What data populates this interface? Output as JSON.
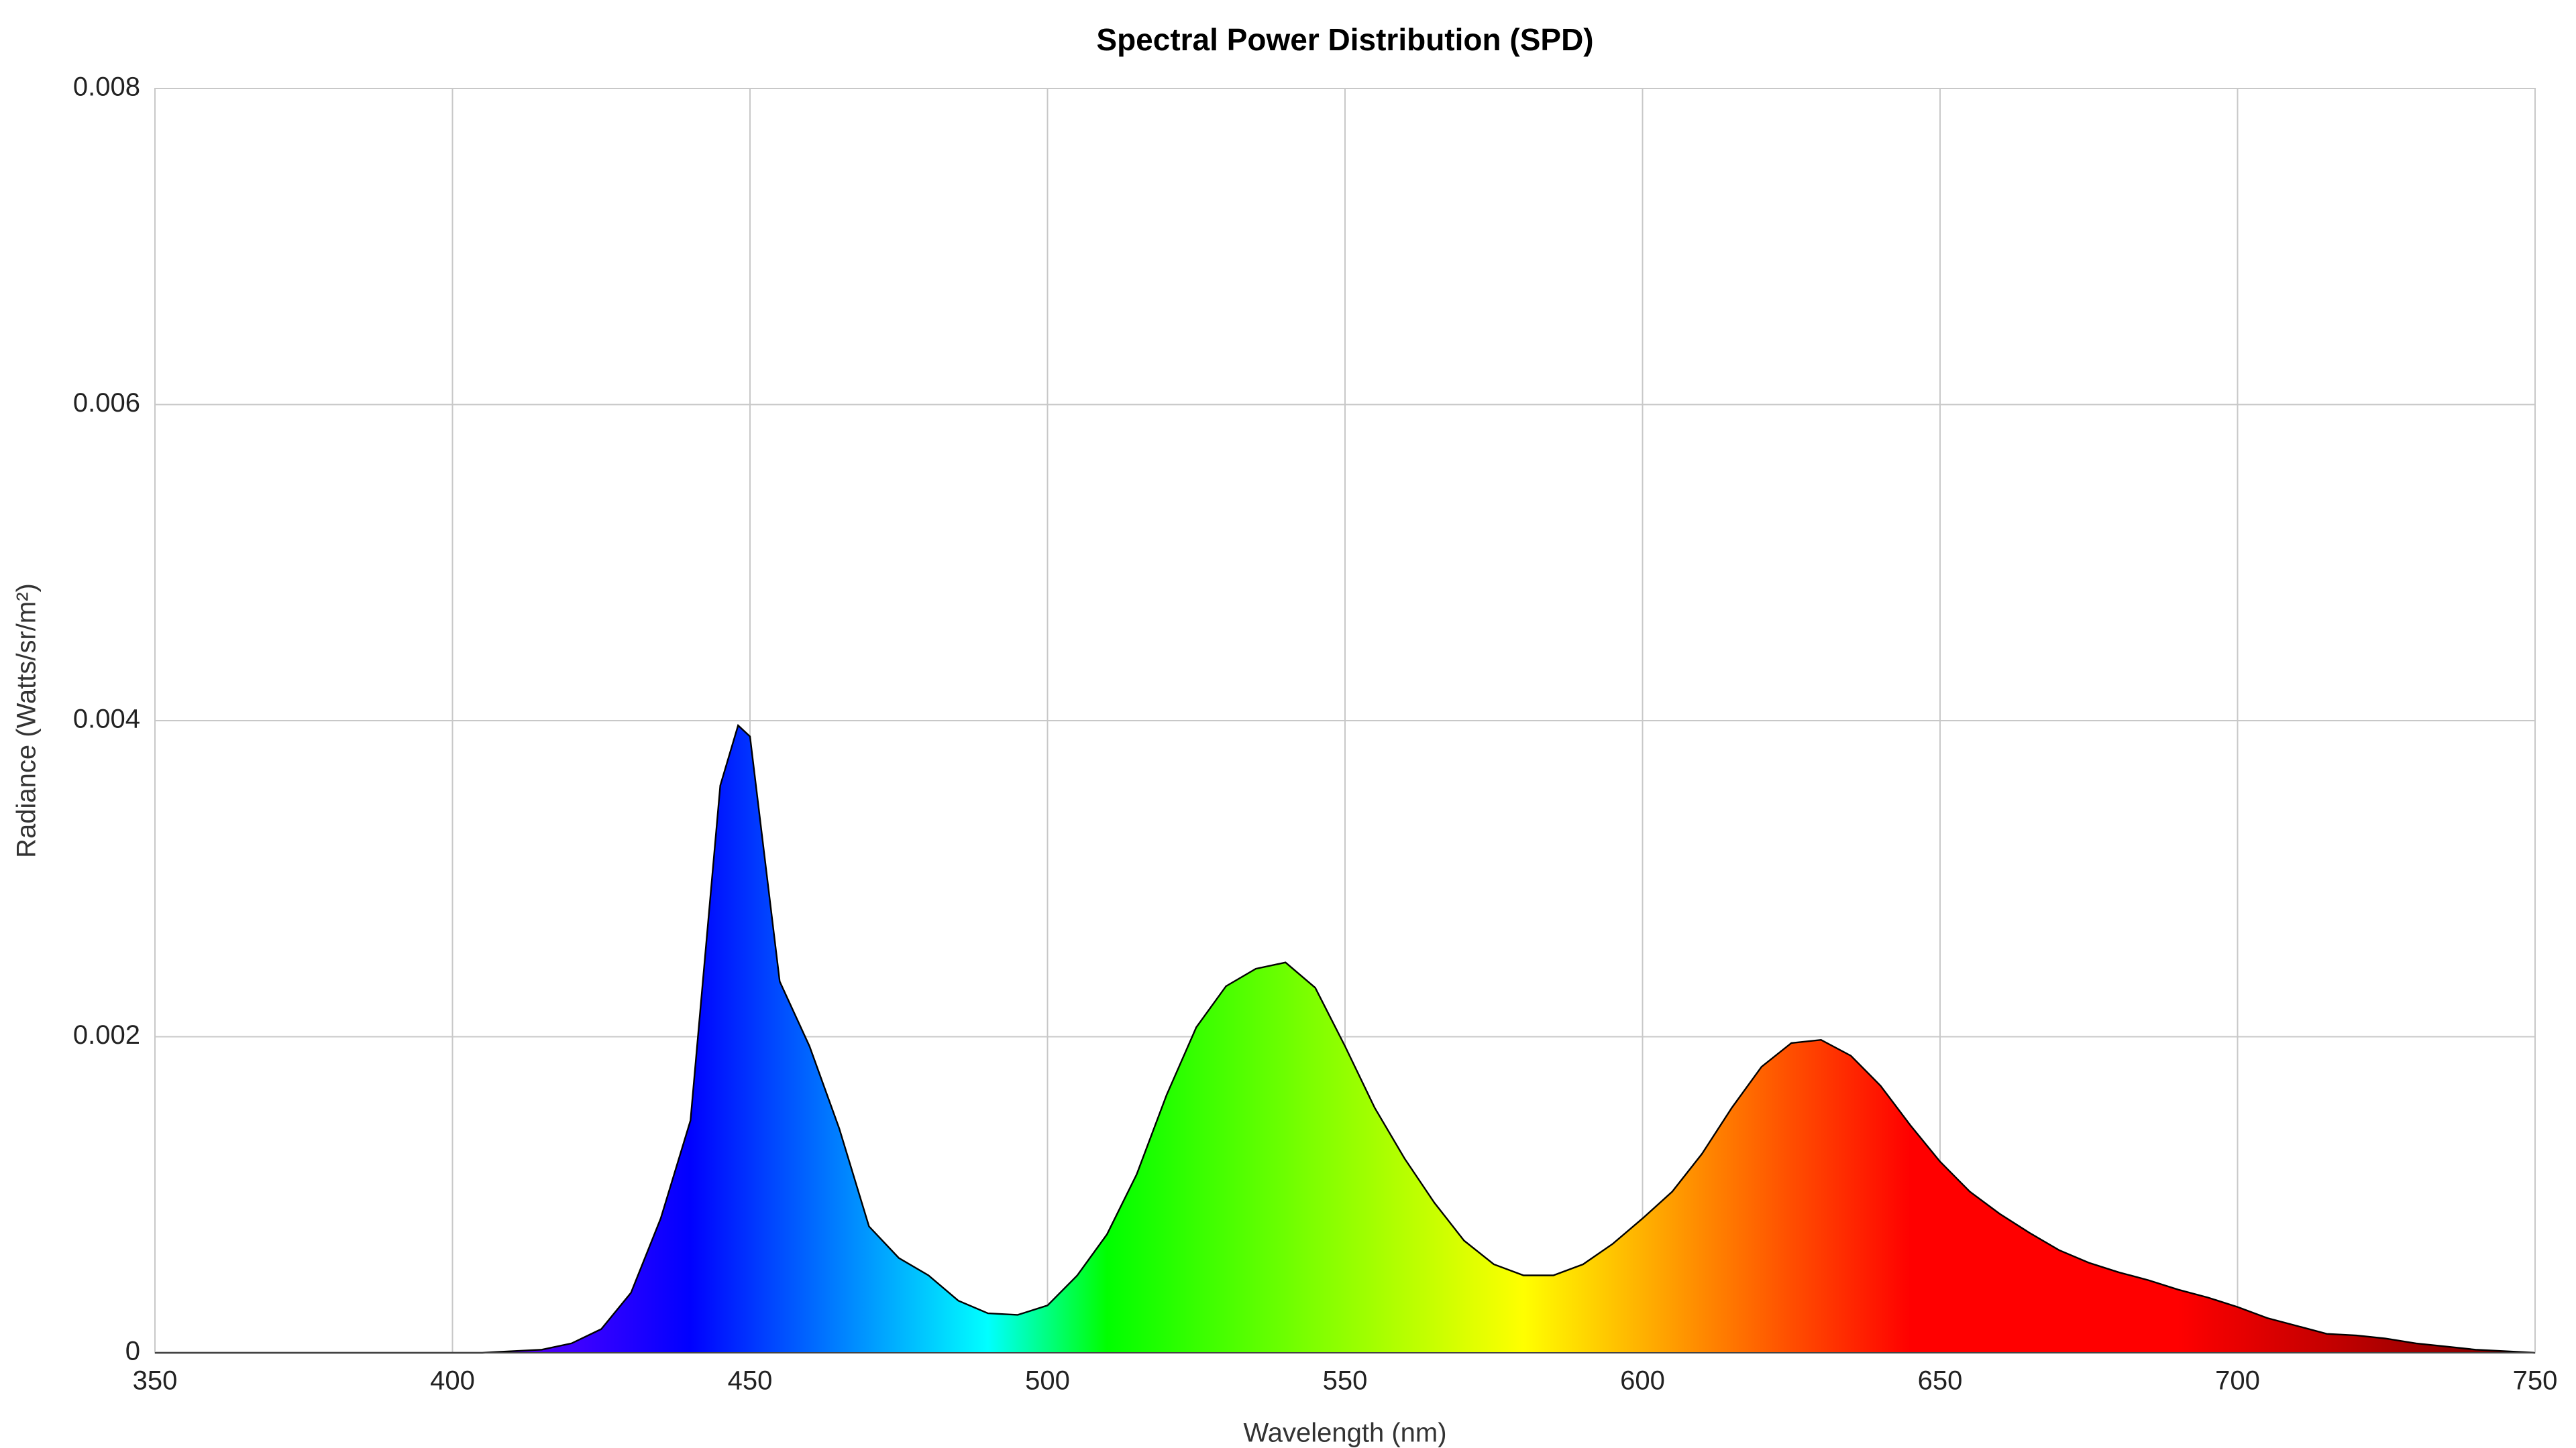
{
  "chart_data": {
    "type": "area",
    "title": "Spectral Power Distribution (SPD)",
    "xlabel": "Wavelength (nm)",
    "ylabel": "Radiance (Watts/sr/m²)",
    "x": [
      350,
      355,
      360,
      365,
      370,
      375,
      380,
      385,
      390,
      395,
      400,
      405,
      410,
      415,
      420,
      425,
      430,
      435,
      440,
      445,
      448,
      450,
      455,
      460,
      465,
      470,
      475,
      480,
      485,
      490,
      495,
      500,
      505,
      510,
      515,
      520,
      525,
      530,
      535,
      540,
      545,
      550,
      555,
      560,
      565,
      570,
      575,
      580,
      585,
      590,
      595,
      600,
      605,
      610,
      615,
      620,
      625,
      630,
      635,
      640,
      645,
      650,
      655,
      660,
      665,
      670,
      675,
      680,
      685,
      690,
      695,
      700,
      705,
      710,
      715,
      720,
      725,
      730,
      735,
      740,
      745,
      750
    ],
    "values": [
      0,
      0,
      0,
      0,
      0,
      0,
      0,
      0,
      0,
      0,
      0,
      0,
      1e-05,
      2e-05,
      6e-05,
      0.00015,
      0.00038,
      0.00085,
      0.00147,
      0.00359,
      0.00397,
      0.0039,
      0.00235,
      0.00194,
      0.00142,
      0.0008,
      0.0006,
      0.00049,
      0.00033,
      0.00025,
      0.00024,
      0.0003,
      0.00049,
      0.00075,
      0.00113,
      0.00163,
      0.00206,
      0.00232,
      0.00243,
      0.00247,
      0.00231,
      0.00194,
      0.00155,
      0.00123,
      0.00095,
      0.00071,
      0.00056,
      0.00049,
      0.00049,
      0.00056,
      0.00069,
      0.00085,
      0.00102,
      0.00126,
      0.00155,
      0.00181,
      0.00196,
      0.00198,
      0.00188,
      0.00169,
      0.00144,
      0.00121,
      0.00102,
      0.00088,
      0.00076,
      0.00065,
      0.00057,
      0.00051,
      0.00046,
      0.0004,
      0.00035,
      0.00029,
      0.00022,
      0.00017,
      0.00012,
      0.00011,
      9e-05,
      6e-05,
      4e-05,
      2e-05,
      1e-05,
      0
    ],
    "line_color": "#000000",
    "xlim": [
      350,
      750
    ],
    "xticks": [
      350,
      400,
      450,
      500,
      550,
      600,
      650,
      700,
      750
    ],
    "ylim": [
      0,
      0.008
    ],
    "yticks": [
      0,
      0.002,
      0.004,
      0.006,
      0.008
    ],
    "grid": true
  }
}
